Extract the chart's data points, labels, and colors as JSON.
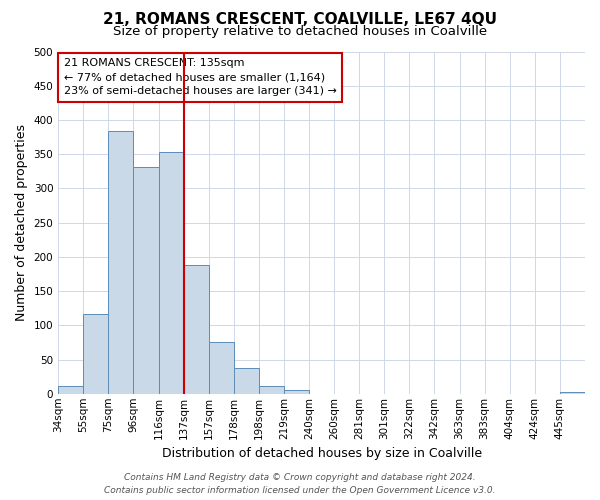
{
  "title": "21, ROMANS CRESCENT, COALVILLE, LE67 4QU",
  "subtitle": "Size of property relative to detached houses in Coalville",
  "xlabel": "Distribution of detached houses by size in Coalville",
  "ylabel": "Number of detached properties",
  "bin_labels": [
    "34sqm",
    "55sqm",
    "75sqm",
    "96sqm",
    "116sqm",
    "137sqm",
    "157sqm",
    "178sqm",
    "198sqm",
    "219sqm",
    "240sqm",
    "260sqm",
    "281sqm",
    "301sqm",
    "322sqm",
    "342sqm",
    "363sqm",
    "383sqm",
    "404sqm",
    "424sqm",
    "445sqm"
  ],
  "bar_values": [
    12,
    116,
    384,
    331,
    353,
    188,
    76,
    38,
    12,
    5,
    0,
    0,
    0,
    0,
    0,
    0,
    0,
    0,
    0,
    0,
    2
  ],
  "bar_color": "#c9d9e8",
  "bar_edge_color": "#5b8db8",
  "property_line_x": 5,
  "property_line_color": "#cc0000",
  "annotation_line1": "21 ROMANS CRESCENT: 135sqm",
  "annotation_line2": "← 77% of detached houses are smaller (1,164)",
  "annotation_line3": "23% of semi-detached houses are larger (341) →",
  "annotation_box_color": "#ffffff",
  "annotation_box_edge_color": "#cc0000",
  "ylim": [
    0,
    500
  ],
  "yticks": [
    0,
    50,
    100,
    150,
    200,
    250,
    300,
    350,
    400,
    450,
    500
  ],
  "footer_line1": "Contains HM Land Registry data © Crown copyright and database right 2024.",
  "footer_line2": "Contains public sector information licensed under the Open Government Licence v3.0.",
  "bg_color": "#ffffff",
  "grid_color": "#d0d8e8",
  "title_fontsize": 11,
  "subtitle_fontsize": 9.5,
  "axis_label_fontsize": 9,
  "tick_fontsize": 7.5,
  "annotation_fontsize": 8,
  "footer_fontsize": 6.5
}
